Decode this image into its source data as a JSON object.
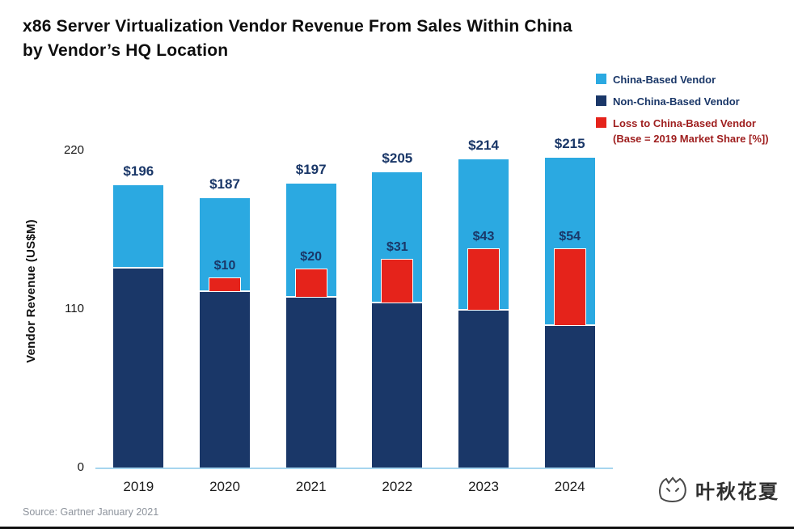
{
  "title": {
    "line1": "x86 Server Virtualization Vendor Revenue From Sales Within China",
    "line2": "by Vendor’s HQ Location"
  },
  "legend": [
    {
      "label": "China-Based Vendor",
      "color": "#2ba9e1",
      "text_color": "#1a3768"
    },
    {
      "label": "Non-China-Based Vendor",
      "color": "#1a3768",
      "text_color": "#1a3768"
    },
    {
      "label": "Loss to China-Based Vendor",
      "label2": "(Base = 2019 Market Share [%])",
      "color": "#e5231b",
      "text_color": "#9e1d1d"
    }
  ],
  "chart_data": {
    "type": "bar",
    "title": "x86 Server Virtualization Vendor Revenue From Sales Within China by Vendor’s HQ Location",
    "xlabel": "",
    "ylabel": "Vendor Revenue (US$M)",
    "ylim": [
      0,
      220
    ],
    "yticks": [
      220,
      110,
      0
    ],
    "grid": "off",
    "legend_position": "top-right",
    "categories": [
      "2019",
      "2020",
      "2021",
      "2022",
      "2023",
      "2024"
    ],
    "series": [
      {
        "name": "Non-China-Based Vendor",
        "color": "#1a3768",
        "values": [
          138,
          122,
          118,
          114,
          109,
          98
        ]
      },
      {
        "name": "China-Based Vendor",
        "color": "#2ba9e1",
        "values": [
          58,
          65,
          79,
          91,
          105,
          117
        ]
      }
    ],
    "totals": [
      "$196",
      "$187",
      "$197",
      "$205",
      "$214",
      "$215"
    ],
    "loss_overlay": {
      "name": "Loss to China-Based Vendor (Base = 2019 Market Share [%])",
      "color": "#e5231b",
      "values": [
        null,
        10,
        20,
        31,
        43,
        54
      ],
      "labels": [
        "",
        "$10",
        "$20",
        "$31",
        "$43",
        "$54"
      ]
    }
  },
  "source": "Source: Gartner January 2021",
  "watermark": "叶秋花夏"
}
